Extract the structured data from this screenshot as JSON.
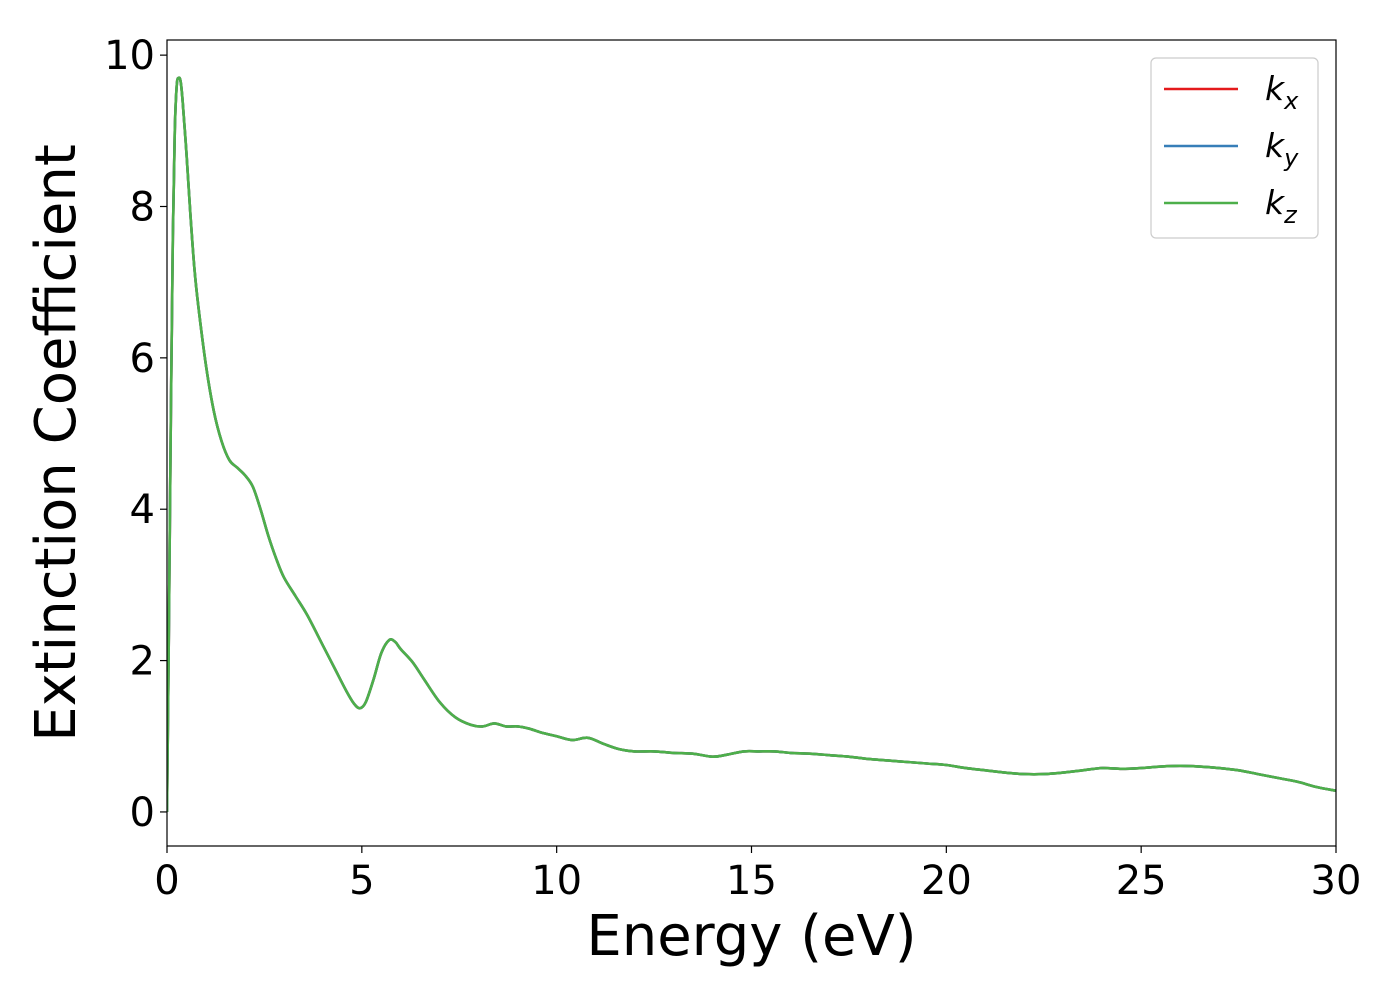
{
  "chart_data": {
    "type": "line",
    "title": "",
    "xlabel": "Energy (eV)",
    "ylabel": "Extinction Coefficient",
    "xlim": [
      0,
      30
    ],
    "ylim": [
      -0.45,
      10.2
    ],
    "xticks": [
      "0",
      "5",
      "10",
      "15",
      "20",
      "25",
      "30"
    ],
    "yticks": [
      "0",
      "2",
      "4",
      "6",
      "8",
      "10"
    ],
    "grid": false,
    "legend_position": "top-right",
    "series": [
      {
        "name": "k_x",
        "label_main": "k",
        "label_sub": "x",
        "color": "#e41a1c",
        "x": [
          0,
          0.05,
          0.1,
          0.15,
          0.2,
          0.25,
          0.3,
          0.35,
          0.4,
          0.5,
          0.6,
          0.7,
          0.8,
          1.0,
          1.2,
          1.4,
          1.6,
          1.8,
          2.0,
          2.2,
          2.4,
          2.6,
          2.8,
          3.0,
          3.3,
          3.6,
          4.0,
          4.3,
          4.6,
          4.8,
          4.95,
          5.1,
          5.3,
          5.5,
          5.7,
          5.85,
          6.0,
          6.3,
          6.6,
          7.0,
          7.4,
          7.8,
          8.1,
          8.4,
          8.7,
          9.0,
          9.3,
          9.6,
          10.0,
          10.4,
          10.8,
          11.2,
          11.6,
          12.0,
          12.5,
          13.0,
          13.5,
          14.0,
          14.4,
          14.8,
          15.2,
          15.6,
          16.0,
          16.5,
          17.0,
          17.5,
          18.0,
          18.5,
          19.0,
          19.5,
          20.0,
          20.5,
          21.0,
          21.5,
          22.0,
          22.5,
          23.0,
          23.5,
          24.0,
          24.5,
          25.0,
          25.5,
          26.0,
          26.5,
          27.0,
          27.5,
          28.0,
          28.5,
          29.0,
          29.5,
          30.0
        ],
        "y": [
          0.0,
          2.5,
          5.3,
          7.6,
          9.0,
          9.6,
          9.7,
          9.65,
          9.4,
          8.7,
          7.9,
          7.2,
          6.7,
          5.9,
          5.3,
          4.9,
          4.65,
          4.55,
          4.45,
          4.3,
          4.0,
          3.65,
          3.35,
          3.1,
          2.85,
          2.6,
          2.2,
          1.9,
          1.6,
          1.43,
          1.37,
          1.45,
          1.75,
          2.1,
          2.27,
          2.25,
          2.15,
          1.98,
          1.75,
          1.45,
          1.25,
          1.15,
          1.13,
          1.17,
          1.13,
          1.13,
          1.1,
          1.05,
          1.0,
          0.95,
          0.98,
          0.9,
          0.83,
          0.8,
          0.8,
          0.78,
          0.77,
          0.73,
          0.76,
          0.8,
          0.8,
          0.8,
          0.78,
          0.77,
          0.75,
          0.73,
          0.7,
          0.68,
          0.66,
          0.64,
          0.62,
          0.58,
          0.55,
          0.52,
          0.5,
          0.5,
          0.52,
          0.55,
          0.58,
          0.57,
          0.58,
          0.6,
          0.61,
          0.6,
          0.58,
          0.55,
          0.5,
          0.45,
          0.4,
          0.33,
          0.28
        ]
      },
      {
        "name": "k_y",
        "label_main": "k",
        "label_sub": "y",
        "color": "#377eb8",
        "x": [
          0,
          0.05,
          0.1,
          0.15,
          0.2,
          0.25,
          0.3,
          0.35,
          0.4,
          0.5,
          0.6,
          0.7,
          0.8,
          1.0,
          1.2,
          1.4,
          1.6,
          1.8,
          2.0,
          2.2,
          2.4,
          2.6,
          2.8,
          3.0,
          3.3,
          3.6,
          4.0,
          4.3,
          4.6,
          4.8,
          4.95,
          5.1,
          5.3,
          5.5,
          5.7,
          5.85,
          6.0,
          6.3,
          6.6,
          7.0,
          7.4,
          7.8,
          8.1,
          8.4,
          8.7,
          9.0,
          9.3,
          9.6,
          10.0,
          10.4,
          10.8,
          11.2,
          11.6,
          12.0,
          12.5,
          13.0,
          13.5,
          14.0,
          14.4,
          14.8,
          15.2,
          15.6,
          16.0,
          16.5,
          17.0,
          17.5,
          18.0,
          18.5,
          19.0,
          19.5,
          20.0,
          20.5,
          21.0,
          21.5,
          22.0,
          22.5,
          23.0,
          23.5,
          24.0,
          24.5,
          25.0,
          25.5,
          26.0,
          26.5,
          27.0,
          27.5,
          28.0,
          28.5,
          29.0,
          29.5,
          30.0
        ],
        "y": [
          0.0,
          2.5,
          5.3,
          7.6,
          9.0,
          9.6,
          9.7,
          9.65,
          9.4,
          8.7,
          7.9,
          7.2,
          6.7,
          5.9,
          5.3,
          4.9,
          4.65,
          4.55,
          4.45,
          4.3,
          4.0,
          3.65,
          3.35,
          3.1,
          2.85,
          2.6,
          2.2,
          1.9,
          1.6,
          1.43,
          1.37,
          1.45,
          1.75,
          2.1,
          2.27,
          2.25,
          2.15,
          1.98,
          1.75,
          1.45,
          1.25,
          1.15,
          1.13,
          1.17,
          1.13,
          1.13,
          1.1,
          1.05,
          1.0,
          0.95,
          0.98,
          0.9,
          0.83,
          0.8,
          0.8,
          0.78,
          0.77,
          0.73,
          0.76,
          0.8,
          0.8,
          0.8,
          0.78,
          0.77,
          0.75,
          0.73,
          0.7,
          0.68,
          0.66,
          0.64,
          0.62,
          0.58,
          0.55,
          0.52,
          0.5,
          0.5,
          0.52,
          0.55,
          0.58,
          0.57,
          0.58,
          0.6,
          0.61,
          0.6,
          0.58,
          0.55,
          0.5,
          0.45,
          0.4,
          0.33,
          0.28
        ]
      },
      {
        "name": "k_z",
        "label_main": "k",
        "label_sub": "z",
        "color": "#4daf4a",
        "x": [
          0,
          0.05,
          0.1,
          0.15,
          0.2,
          0.25,
          0.3,
          0.35,
          0.4,
          0.5,
          0.6,
          0.7,
          0.8,
          1.0,
          1.2,
          1.4,
          1.6,
          1.8,
          2.0,
          2.2,
          2.4,
          2.6,
          2.8,
          3.0,
          3.3,
          3.6,
          4.0,
          4.3,
          4.6,
          4.8,
          4.95,
          5.1,
          5.3,
          5.5,
          5.7,
          5.85,
          6.0,
          6.3,
          6.6,
          7.0,
          7.4,
          7.8,
          8.1,
          8.4,
          8.7,
          9.0,
          9.3,
          9.6,
          10.0,
          10.4,
          10.8,
          11.2,
          11.6,
          12.0,
          12.5,
          13.0,
          13.5,
          14.0,
          14.4,
          14.8,
          15.2,
          15.6,
          16.0,
          16.5,
          17.0,
          17.5,
          18.0,
          18.5,
          19.0,
          19.5,
          20.0,
          20.5,
          21.0,
          21.5,
          22.0,
          22.5,
          23.0,
          23.5,
          24.0,
          24.5,
          25.0,
          25.5,
          26.0,
          26.5,
          27.0,
          27.5,
          28.0,
          28.5,
          29.0,
          29.5,
          30.0
        ],
        "y": [
          0.0,
          2.5,
          5.3,
          7.6,
          9.0,
          9.6,
          9.7,
          9.65,
          9.4,
          8.7,
          7.9,
          7.2,
          6.7,
          5.9,
          5.3,
          4.9,
          4.65,
          4.55,
          4.45,
          4.3,
          4.0,
          3.65,
          3.35,
          3.1,
          2.85,
          2.6,
          2.2,
          1.9,
          1.6,
          1.43,
          1.37,
          1.45,
          1.75,
          2.1,
          2.27,
          2.25,
          2.15,
          1.98,
          1.75,
          1.45,
          1.25,
          1.15,
          1.13,
          1.17,
          1.13,
          1.13,
          1.1,
          1.05,
          1.0,
          0.95,
          0.98,
          0.9,
          0.83,
          0.8,
          0.8,
          0.78,
          0.77,
          0.73,
          0.76,
          0.8,
          0.8,
          0.8,
          0.78,
          0.77,
          0.75,
          0.73,
          0.7,
          0.68,
          0.66,
          0.64,
          0.62,
          0.58,
          0.55,
          0.52,
          0.5,
          0.5,
          0.52,
          0.55,
          0.58,
          0.57,
          0.58,
          0.6,
          0.61,
          0.6,
          0.58,
          0.55,
          0.5,
          0.45,
          0.4,
          0.33,
          0.28
        ]
      }
    ]
  }
}
